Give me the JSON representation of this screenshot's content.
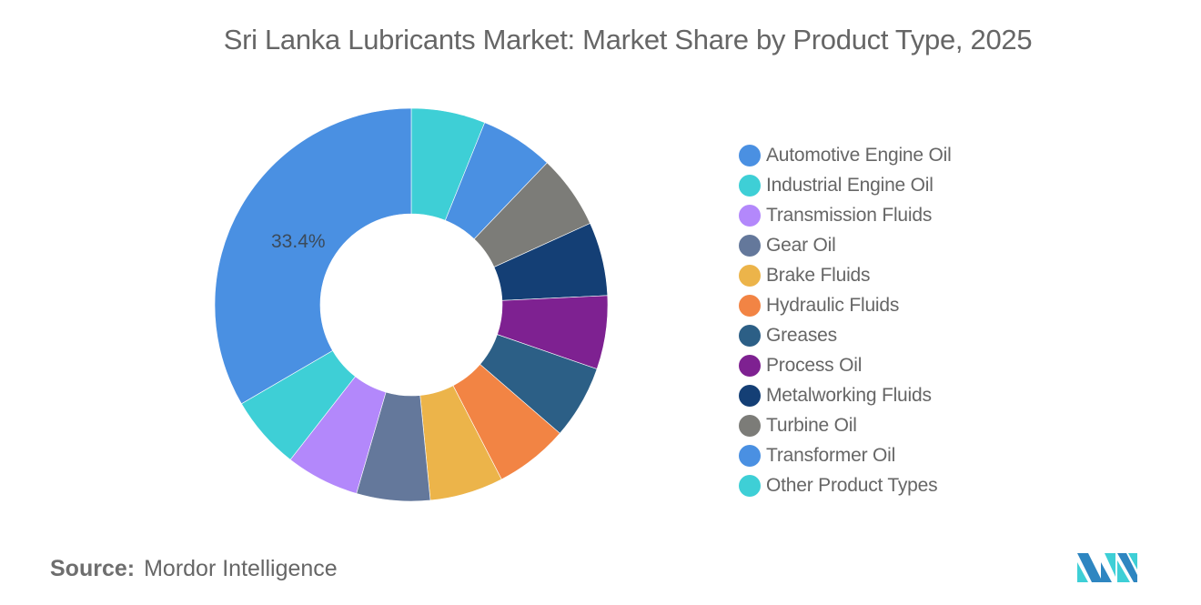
{
  "title": "Sri Lanka Lubricants Market: Market Share by Product Type, 2025",
  "source": {
    "label": "Source:",
    "value": "Mordor Intelligence"
  },
  "logo": {
    "name": "mordor-intelligence-logo",
    "colors": [
      "#2e86c1",
      "#3ecfd6"
    ]
  },
  "chart_data": {
    "type": "pie",
    "subtype": "donut",
    "title": "Sri Lanka Lubricants Market: Market Share by Product Type, 2025",
    "categories": [
      "Automotive Engine Oil",
      "Industrial Engine Oil",
      "Transmission Fluids",
      "Gear Oil",
      "Brake Fluids",
      "Hydraulic Fluids",
      "Greases",
      "Process Oil",
      "Metalworking Fluids",
      "Turbine Oil",
      "Transformer Oil",
      "Other Product Types"
    ],
    "values": [
      33.4,
      6.05,
      6.05,
      6.05,
      6.05,
      6.05,
      6.05,
      6.05,
      6.05,
      6.05,
      6.05,
      6.1
    ],
    "colors": [
      "#4a90e2",
      "#3ecfd6",
      "#b388fb",
      "#64789b",
      "#ecb44a",
      "#f28444",
      "#2c5f86",
      "#7e2191",
      "#143f75",
      "#7c7c78",
      "#4a90e2",
      "#3ecfd6"
    ],
    "data_labels": [
      {
        "category": "Automotive Engine Oil",
        "text": "33.4%"
      }
    ],
    "legend_position": "right",
    "drawing_order": "clockwise from 12 o'clock, starting with last category (Other Product Types) and ending with Automotive Engine Oil"
  },
  "legend": {
    "items": [
      {
        "label": "Automotive Engine Oil",
        "color": "#4a90e2"
      },
      {
        "label": "Industrial Engine Oil",
        "color": "#3ecfd6"
      },
      {
        "label": "Transmission Fluids",
        "color": "#b388fb"
      },
      {
        "label": "Gear Oil",
        "color": "#64789b"
      },
      {
        "label": "Brake Fluids",
        "color": "#ecb44a"
      },
      {
        "label": "Hydraulic Fluids",
        "color": "#f28444"
      },
      {
        "label": "Greases",
        "color": "#2c5f86"
      },
      {
        "label": "Process Oil",
        "color": "#7e2191"
      },
      {
        "label": "Metalworking Fluids",
        "color": "#143f75"
      },
      {
        "label": "Turbine Oil",
        "color": "#7c7c78"
      },
      {
        "label": "Transformer Oil",
        "color": "#4a90e2"
      },
      {
        "label": "Other Product Types",
        "color": "#3ecfd6"
      }
    ]
  }
}
